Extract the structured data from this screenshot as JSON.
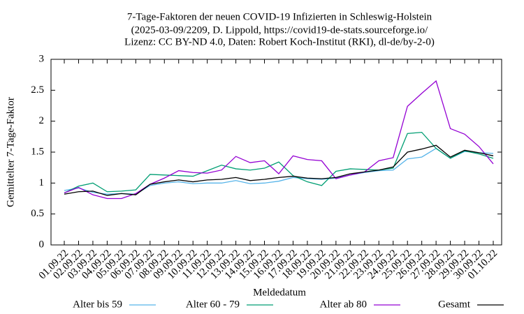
{
  "chart_data": {
    "type": "line",
    "title": [
      "7-Tage-Faktoren der neuen COVID-19 Infizierten in Schleswig-Holstein",
      "(2025-03-09/2209, D. Lippold, https://covid19-de-stats.sourceforge.io/",
      "Lizenz: CC BY-ND 4.0, Daten: Robert Koch-Institut (RKI), dl-de/by-2-0)"
    ],
    "x_label": "Meldedatum",
    "y_label": "Gemittelter 7-Tage-Faktor",
    "categories": [
      "01.09.22",
      "02.09.22",
      "03.09.22",
      "04.09.22",
      "05.09.22",
      "06.09.22",
      "07.09.22",
      "08.09.22",
      "09.09.22",
      "10.09.22",
      "11.09.22",
      "12.09.22",
      "13.09.22",
      "14.09.22",
      "15.09.22",
      "16.09.22",
      "17.09.22",
      "18.09.22",
      "19.09.22",
      "20.09.22",
      "21.09.22",
      "22.09.22",
      "23.09.22",
      "24.09.22",
      "25.09.22",
      "26.09.22",
      "27.09.22",
      "28.09.22",
      "29.09.22",
      "30.09.22",
      "01.10.22"
    ],
    "series": [
      {
        "name": "Alter bis 59",
        "color": "#56b4e9",
        "values": [
          0.88,
          0.92,
          0.85,
          0.82,
          0.83,
          0.82,
          0.96,
          1.0,
          1.02,
          0.99,
          1.0,
          1.0,
          1.04,
          0.99,
          1.0,
          1.03,
          1.09,
          1.07,
          1.06,
          1.08,
          1.13,
          1.17,
          1.2,
          1.21,
          1.39,
          1.42,
          1.56,
          1.4,
          1.51,
          1.49,
          1.48
        ]
      },
      {
        "name": "Alter 60 - 79",
        "color": "#009e73",
        "values": [
          0.84,
          0.95,
          1.0,
          0.86,
          0.87,
          0.89,
          1.14,
          1.13,
          1.12,
          1.11,
          1.2,
          1.29,
          1.23,
          1.21,
          1.24,
          1.34,
          1.12,
          1.02,
          0.96,
          1.19,
          1.23,
          1.22,
          1.21,
          1.24,
          1.8,
          1.82,
          1.56,
          1.4,
          1.52,
          1.47,
          1.4
        ]
      },
      {
        "name": "Alter ab 80",
        "color": "#9400d3",
        "values": [
          0.84,
          0.93,
          0.81,
          0.75,
          0.75,
          0.83,
          0.98,
          1.08,
          1.2,
          1.17,
          1.16,
          1.21,
          1.43,
          1.33,
          1.36,
          1.15,
          1.44,
          1.38,
          1.36,
          1.07,
          1.13,
          1.18,
          1.36,
          1.41,
          2.24,
          2.45,
          2.65,
          1.88,
          1.79,
          1.59,
          1.31
        ]
      },
      {
        "name": "Gesamt",
        "color": "#000000",
        "values": [
          0.82,
          0.86,
          0.87,
          0.8,
          0.83,
          0.81,
          0.98,
          1.02,
          1.05,
          1.02,
          1.05,
          1.06,
          1.09,
          1.04,
          1.06,
          1.09,
          1.11,
          1.08,
          1.07,
          1.09,
          1.15,
          1.18,
          1.21,
          1.26,
          1.5,
          1.55,
          1.61,
          1.42,
          1.53,
          1.49,
          1.44
        ]
      }
    ],
    "ylim": [
      0,
      3
    ],
    "yticks": [
      0,
      0.5,
      1,
      1.5,
      2,
      2.5,
      3
    ],
    "grid": false
  }
}
